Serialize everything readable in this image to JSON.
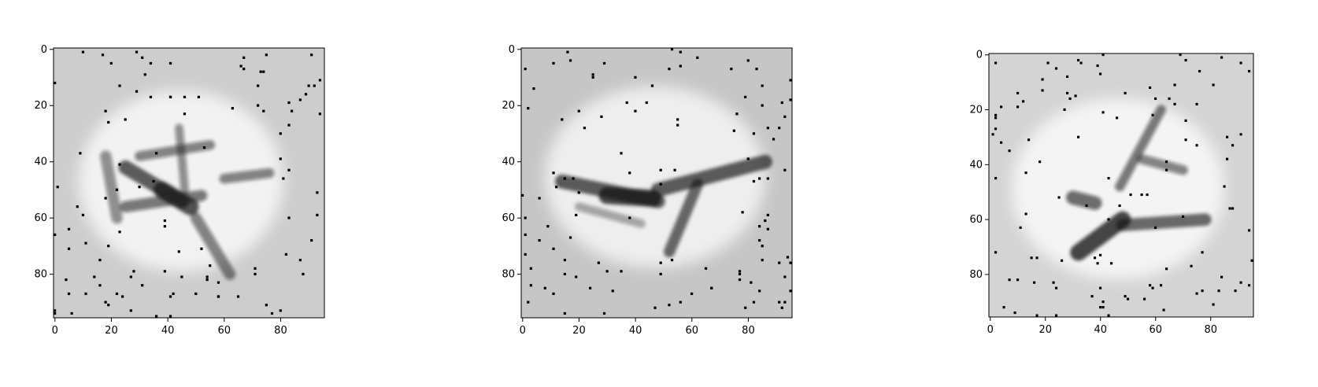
{
  "panels": [
    {
      "id": "panel-1",
      "xticks": [
        "0",
        "20",
        "40",
        "60",
        "80"
      ],
      "yticks": [
        "0",
        "20",
        "40",
        "60",
        "80"
      ],
      "strokes": [
        {
          "x1": 18,
          "y1": 38,
          "x2": 22,
          "y2": 60,
          "w": 4,
          "o": 0.45
        },
        {
          "x1": 25,
          "y1": 42,
          "x2": 45,
          "y2": 54,
          "w": 5,
          "o": 0.7
        },
        {
          "x1": 30,
          "y1": 38,
          "x2": 55,
          "y2": 34,
          "w": 3.5,
          "o": 0.5
        },
        {
          "x1": 44,
          "y1": 28,
          "x2": 46,
          "y2": 50,
          "w": 3,
          "o": 0.45
        },
        {
          "x1": 25,
          "y1": 56,
          "x2": 52,
          "y2": 52,
          "w": 4,
          "o": 0.55
        },
        {
          "x1": 50,
          "y1": 60,
          "x2": 62,
          "y2": 80,
          "w": 4,
          "o": 0.5
        },
        {
          "x1": 60,
          "y1": 46,
          "x2": 76,
          "y2": 44,
          "w": 3.5,
          "o": 0.5
        },
        {
          "x1": 38,
          "y1": 50,
          "x2": 48,
          "y2": 56,
          "w": 6,
          "o": 0.75
        }
      ]
    },
    {
      "id": "panel-2",
      "xticks": [
        "0",
        "20",
        "40",
        "60",
        "80"
      ],
      "yticks": [
        "0",
        "20",
        "40",
        "60",
        "80"
      ],
      "strokes": [
        {
          "x1": 14,
          "y1": 47,
          "x2": 48,
          "y2": 54,
          "w": 5,
          "o": 0.7
        },
        {
          "x1": 48,
          "y1": 50,
          "x2": 86,
          "y2": 40,
          "w": 5,
          "o": 0.7
        },
        {
          "x1": 62,
          "y1": 48,
          "x2": 52,
          "y2": 72,
          "w": 4,
          "o": 0.65
        },
        {
          "x1": 30,
          "y1": 52,
          "x2": 46,
          "y2": 53,
          "w": 6,
          "o": 0.8
        },
        {
          "x1": 20,
          "y1": 56,
          "x2": 42,
          "y2": 62,
          "w": 3,
          "o": 0.35
        }
      ]
    },
    {
      "id": "panel-3",
      "xticks": [
        "0",
        "20",
        "40",
        "60",
        "80"
      ],
      "yticks": [
        "0",
        "20",
        "40",
        "60",
        "80"
      ],
      "strokes": [
        {
          "x1": 32,
          "y1": 72,
          "x2": 48,
          "y2": 60,
          "w": 6,
          "o": 0.8
        },
        {
          "x1": 48,
          "y1": 62,
          "x2": 78,
          "y2": 60,
          "w": 4.5,
          "o": 0.65
        },
        {
          "x1": 47,
          "y1": 48,
          "x2": 62,
          "y2": 20,
          "w": 3.5,
          "o": 0.55
        },
        {
          "x1": 30,
          "y1": 52,
          "x2": 38,
          "y2": 54,
          "w": 5,
          "o": 0.6
        },
        {
          "x1": 55,
          "y1": 38,
          "x2": 70,
          "y2": 42,
          "w": 3.5,
          "o": 0.5
        }
      ]
    }
  ]
}
